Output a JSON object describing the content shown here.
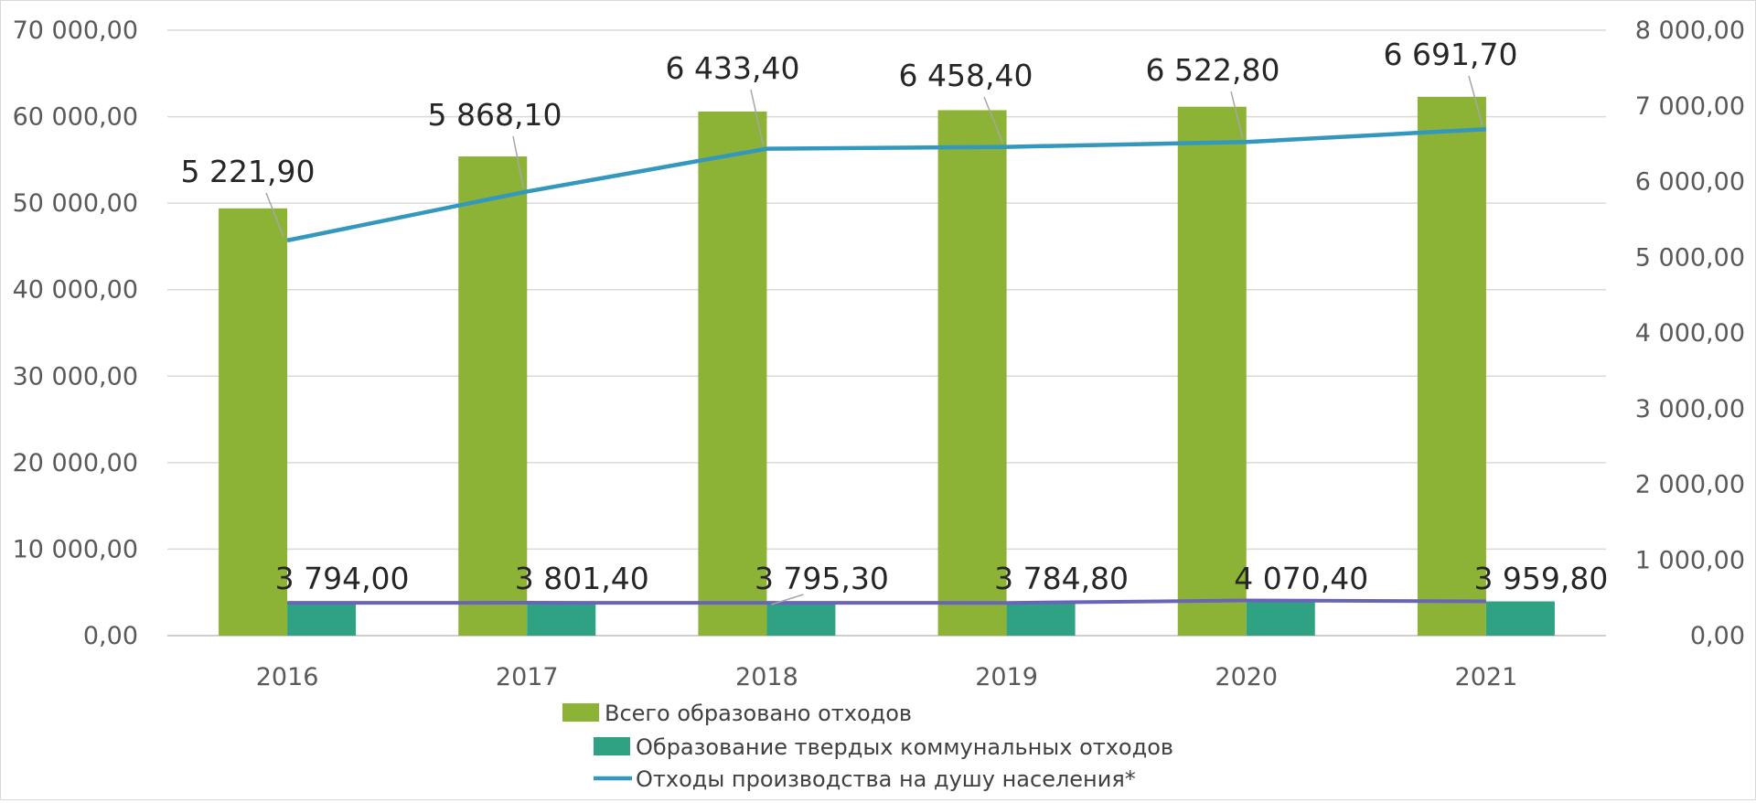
{
  "chart_data": {
    "type": "bar",
    "categories": [
      "2016",
      "2017",
      "2018",
      "2019",
      "2020",
      "2021"
    ],
    "left_axis": {
      "ylim": [
        0,
        70000
      ],
      "ticks": [
        0,
        10000,
        20000,
        30000,
        40000,
        50000,
        60000,
        70000
      ],
      "tick_labels": [
        "0,00",
        "10 000,00",
        "20 000,00",
        "30 000,00",
        "40 000,00",
        "50 000,00",
        "60 000,00",
        "70 000,00"
      ]
    },
    "right_axis": {
      "ylim": [
        0,
        8000
      ],
      "ticks": [
        0,
        1000,
        2000,
        3000,
        4000,
        5000,
        6000,
        7000,
        8000
      ],
      "tick_labels": [
        "0,00",
        "1 000,00",
        "2 000,00",
        "3 000,00",
        "4 000,00",
        "5 000,00",
        "6 000,00",
        "7 000,00",
        "8 000,00"
      ]
    },
    "grid": true,
    "legend_position": "bottom",
    "series": [
      {
        "name": "Всего образовано отходов",
        "type": "bar",
        "axis": "left",
        "color": "#8cb335",
        "values": [
          49400,
          55400,
          60600,
          60750,
          61150,
          62300
        ]
      },
      {
        "name": "Образование твердых коммунальных отходов",
        "type": "bar",
        "axis": "left",
        "color": "#2ea282",
        "values": [
          3794.0,
          3801.4,
          3795.3,
          3784.8,
          4070.4,
          3959.8
        ],
        "labels": [
          "3 794,00",
          "3 801,40",
          "3 795,30",
          "3 784,80",
          "4 070,40",
          "3 959,80"
        ]
      },
      {
        "name": "Отходы производства на душу населения*",
        "type": "line",
        "axis": "right",
        "color": "#3497be",
        "values": [
          5221.9,
          5868.1,
          6433.4,
          6458.4,
          6522.8,
          6691.7
        ],
        "labels": [
          "5 221,90",
          "5 868,10",
          "6 433,40",
          "6 458,40",
          "6 522,80",
          "6 691,70"
        ]
      },
      {
        "type": "line",
        "axis": "left",
        "color": "#6a64b8",
        "values": [
          3794.0,
          3801.4,
          3795.3,
          3784.8,
          4070.4,
          3959.8
        ]
      }
    ]
  }
}
